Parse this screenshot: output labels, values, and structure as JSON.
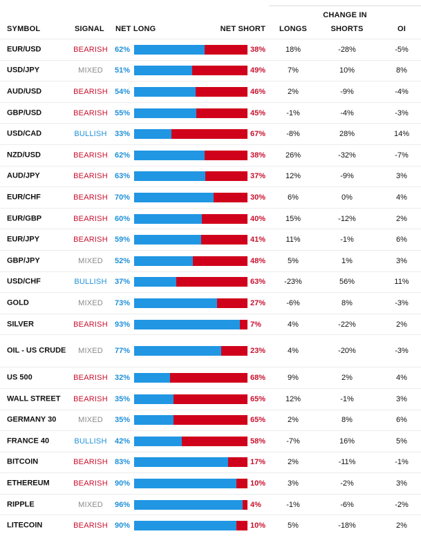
{
  "header": {
    "change_in": "CHANGE IN",
    "symbol": "SYMBOL",
    "signal": "SIGNAL",
    "net_long": "NET LONG",
    "net_short": "NET SHORT",
    "longs": "LONGS",
    "shorts": "SHORTS",
    "oi": "OI"
  },
  "colors": {
    "long": "#2196e3",
    "short": "#d0021b",
    "bearish": "#c8102e",
    "bullish": "#1e90d8",
    "mixed": "#8a8a8a"
  },
  "rows": [
    {
      "symbol": "EUR/USD",
      "signal": "BEARISH",
      "net_long": "62%",
      "net_short": "38%",
      "long_pct": 62,
      "longs": "18%",
      "shorts": "-28%",
      "oi": "-5%"
    },
    {
      "symbol": "USD/JPY",
      "signal": "MIXED",
      "net_long": "51%",
      "net_short": "49%",
      "long_pct": 51,
      "longs": "7%",
      "shorts": "10%",
      "oi": "8%"
    },
    {
      "symbol": "AUD/USD",
      "signal": "BEARISH",
      "net_long": "54%",
      "net_short": "46%",
      "long_pct": 54,
      "longs": "2%",
      "shorts": "-9%",
      "oi": "-4%"
    },
    {
      "symbol": "GBP/USD",
      "signal": "BEARISH",
      "net_long": "55%",
      "net_short": "45%",
      "long_pct": 55,
      "longs": "-1%",
      "shorts": "-4%",
      "oi": "-3%"
    },
    {
      "symbol": "USD/CAD",
      "signal": "BULLISH",
      "net_long": "33%",
      "net_short": "67%",
      "long_pct": 33,
      "longs": "-8%",
      "shorts": "28%",
      "oi": "14%"
    },
    {
      "symbol": "NZD/USD",
      "signal": "BEARISH",
      "net_long": "62%",
      "net_short": "38%",
      "long_pct": 62,
      "longs": "26%",
      "shorts": "-32%",
      "oi": "-7%"
    },
    {
      "symbol": "AUD/JPY",
      "signal": "BEARISH",
      "net_long": "63%",
      "net_short": "37%",
      "long_pct": 63,
      "longs": "12%",
      "shorts": "-9%",
      "oi": "3%"
    },
    {
      "symbol": "EUR/CHF",
      "signal": "BEARISH",
      "net_long": "70%",
      "net_short": "30%",
      "long_pct": 70,
      "longs": "6%",
      "shorts": "0%",
      "oi": "4%"
    },
    {
      "symbol": "EUR/GBP",
      "signal": "BEARISH",
      "net_long": "60%",
      "net_short": "40%",
      "long_pct": 60,
      "longs": "15%",
      "shorts": "-12%",
      "oi": "2%"
    },
    {
      "symbol": "EUR/JPY",
      "signal": "BEARISH",
      "net_long": "59%",
      "net_short": "41%",
      "long_pct": 59,
      "longs": "11%",
      "shorts": "-1%",
      "oi": "6%"
    },
    {
      "symbol": "GBP/JPY",
      "signal": "MIXED",
      "net_long": "52%",
      "net_short": "48%",
      "long_pct": 52,
      "longs": "5%",
      "shorts": "1%",
      "oi": "3%"
    },
    {
      "symbol": "USD/CHF",
      "signal": "BULLISH",
      "net_long": "37%",
      "net_short": "63%",
      "long_pct": 37,
      "longs": "-23%",
      "shorts": "56%",
      "oi": "11%"
    },
    {
      "symbol": "GOLD",
      "signal": "MIXED",
      "net_long": "73%",
      "net_short": "27%",
      "long_pct": 73,
      "longs": "-6%",
      "shorts": "8%",
      "oi": "-3%"
    },
    {
      "symbol": "SILVER",
      "signal": "BEARISH",
      "net_long": "93%",
      "net_short": "7%",
      "long_pct": 93,
      "longs": "4%",
      "shorts": "-22%",
      "oi": "2%"
    },
    {
      "symbol": "OIL - US CRUDE",
      "signal": "MIXED",
      "net_long": "77%",
      "net_short": "23%",
      "long_pct": 77,
      "longs": "4%",
      "shorts": "-20%",
      "oi": "-3%",
      "tall": true
    },
    {
      "symbol": "US 500",
      "signal": "BEARISH",
      "net_long": "32%",
      "net_short": "68%",
      "long_pct": 32,
      "longs": "9%",
      "shorts": "2%",
      "oi": "4%"
    },
    {
      "symbol": "WALL STREET",
      "signal": "BEARISH",
      "net_long": "35%",
      "net_short": "65%",
      "long_pct": 35,
      "longs": "12%",
      "shorts": "-1%",
      "oi": "3%"
    },
    {
      "symbol": "GERMANY 30",
      "signal": "MIXED",
      "net_long": "35%",
      "net_short": "65%",
      "long_pct": 35,
      "longs": "2%",
      "shorts": "8%",
      "oi": "6%"
    },
    {
      "symbol": "FRANCE 40",
      "signal": "BULLISH",
      "net_long": "42%",
      "net_short": "58%",
      "long_pct": 42,
      "longs": "-7%",
      "shorts": "16%",
      "oi": "5%"
    },
    {
      "symbol": "BITCOIN",
      "signal": "BEARISH",
      "net_long": "83%",
      "net_short": "17%",
      "long_pct": 83,
      "longs": "2%",
      "shorts": "-11%",
      "oi": "-1%"
    },
    {
      "symbol": "ETHEREUM",
      "signal": "BEARISH",
      "net_long": "90%",
      "net_short": "10%",
      "long_pct": 90,
      "longs": "3%",
      "shorts": "-2%",
      "oi": "3%"
    },
    {
      "symbol": "RIPPLE",
      "signal": "MIXED",
      "net_long": "96%",
      "net_short": "4%",
      "long_pct": 96,
      "longs": "-1%",
      "shorts": "-6%",
      "oi": "-2%"
    },
    {
      "symbol": "LITECOIN",
      "signal": "BEARISH",
      "net_long": "90%",
      "net_short": "10%",
      "long_pct": 90,
      "longs": "5%",
      "shorts": "-18%",
      "oi": "2%"
    }
  ]
}
